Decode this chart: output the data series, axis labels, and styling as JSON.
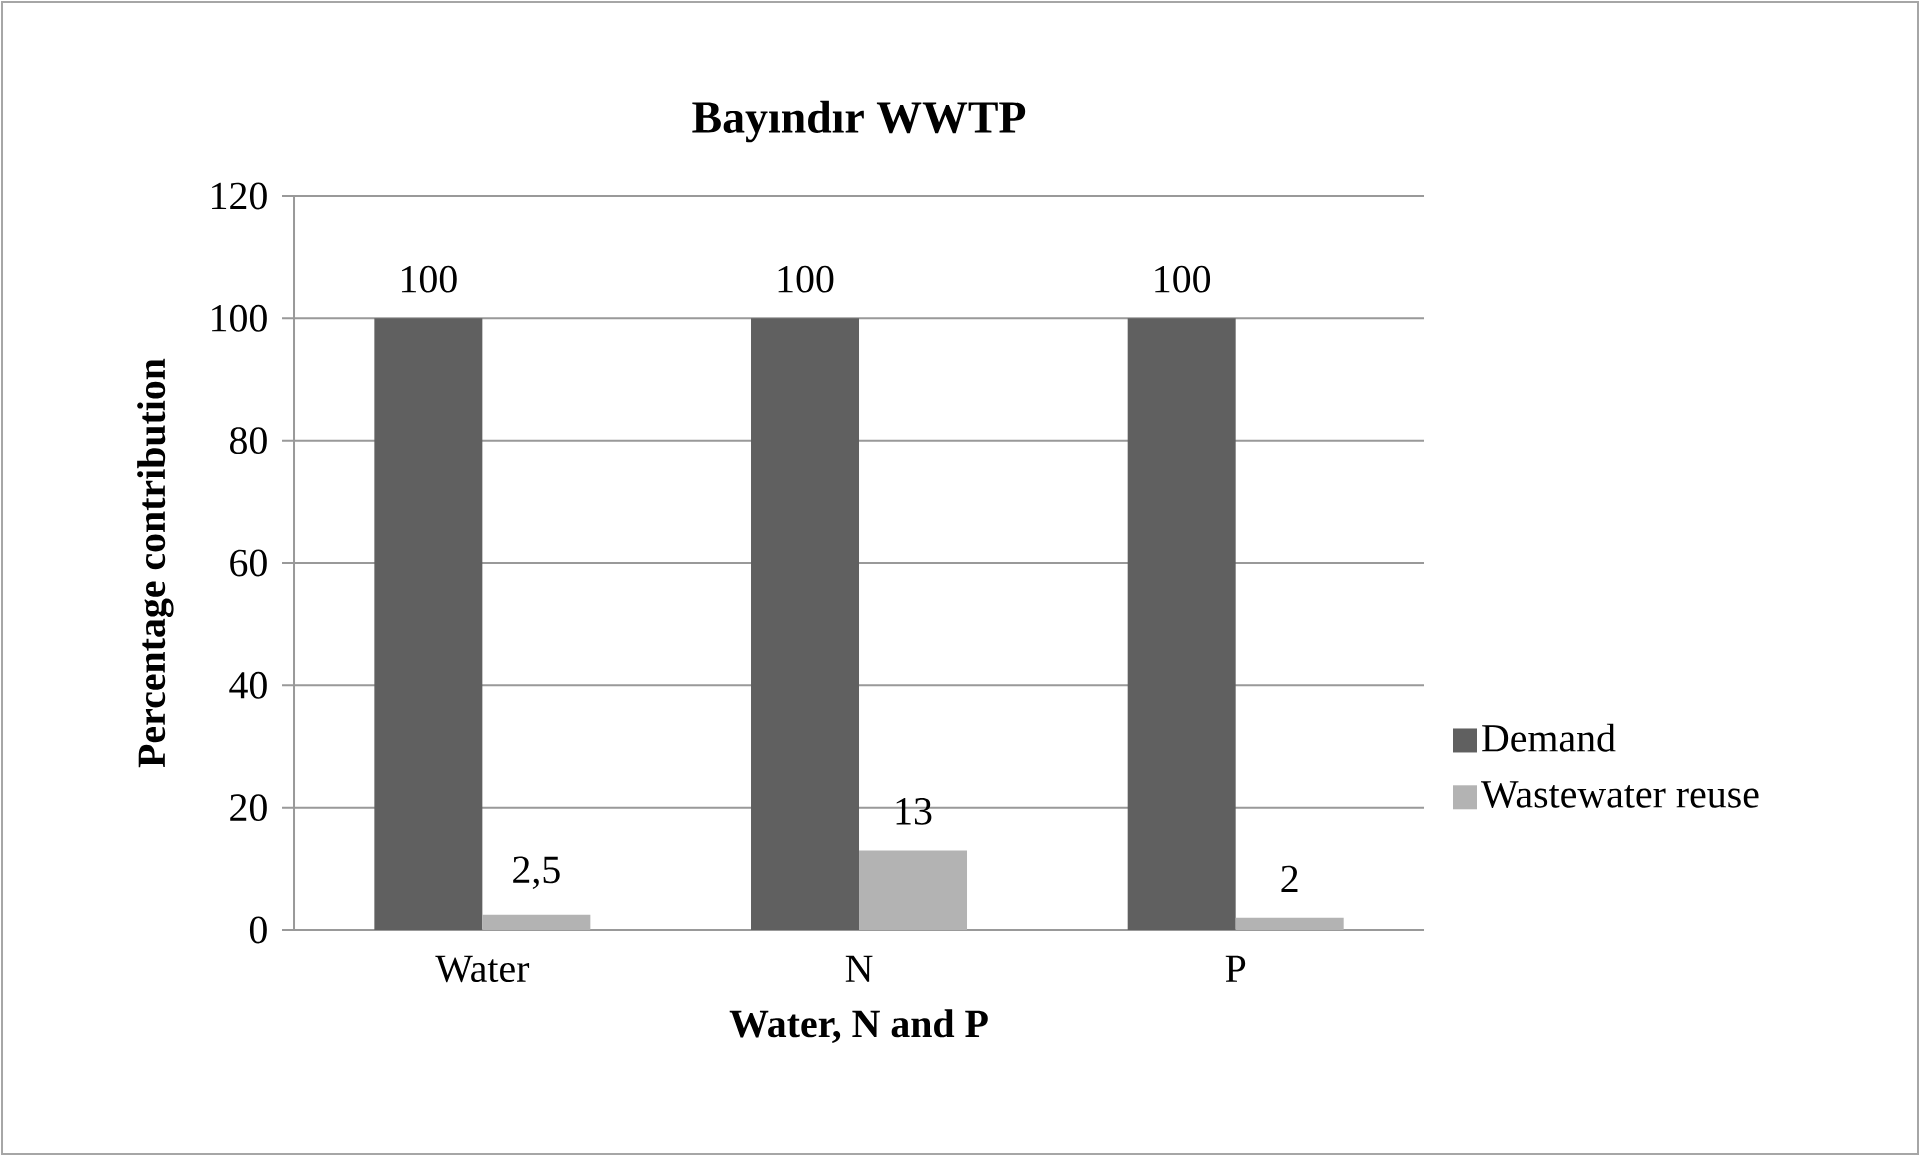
{
  "chart_data": {
    "type": "bar",
    "title": "Bayındır WWTP",
    "xlabel": "Water, N and P",
    "ylabel": "Percentage contribution",
    "categories": [
      "Water",
      "N",
      "P"
    ],
    "series": [
      {
        "name": "Demand",
        "color": "#606060",
        "values": [
          100,
          100,
          100
        ],
        "value_labels": [
          "100",
          "100",
          "100"
        ]
      },
      {
        "name": "Wastewater reuse",
        "color": "#b3b3b3",
        "values": [
          2.5,
          13,
          2
        ],
        "value_labels": [
          "2,5",
          "13",
          "2"
        ]
      }
    ],
    "ylim": [
      0,
      120
    ],
    "yticks": [
      0,
      20,
      40,
      60,
      80,
      100,
      120
    ],
    "grid": "y",
    "legend": "right"
  }
}
